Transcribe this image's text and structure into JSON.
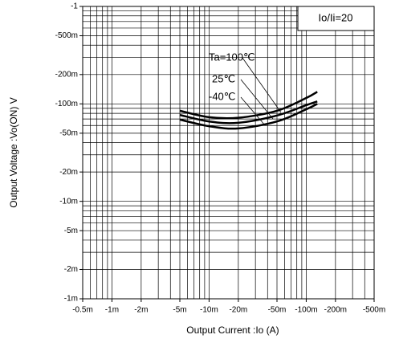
{
  "chart_data": {
    "type": "line",
    "xlabel": "Output Current :Io  (A)",
    "ylabel": "Output Voltage :Vo(ON) V",
    "condition": "Io/Ii=20",
    "xscale": "log",
    "yscale": "log",
    "xlim": [
      -0.0005,
      -0.5
    ],
    "ylim": [
      -0.001,
      -1
    ],
    "xticks": [
      {
        "value": -0.0005,
        "label": "-0.5m"
      },
      {
        "value": -0.001,
        "label": "-1m"
      },
      {
        "value": -0.002,
        "label": "-2m"
      },
      {
        "value": -0.005,
        "label": "-5m"
      },
      {
        "value": -0.01,
        "label": "-10m"
      },
      {
        "value": -0.02,
        "label": "-20m"
      },
      {
        "value": -0.05,
        "label": "-50m"
      },
      {
        "value": -0.1,
        "label": "-100m"
      },
      {
        "value": -0.2,
        "label": "-200m"
      },
      {
        "value": -0.5,
        "label": "-500m"
      }
    ],
    "yticks": [
      -1,
      {
        "value": -0.5,
        "label": "-500m"
      },
      {
        "value": -0.2,
        "label": "-200m"
      },
      {
        "value": -0.1,
        "label": "-100m"
      },
      {
        "value": -0.05,
        "label": "-50m"
      },
      {
        "value": -0.02,
        "label": "-20m"
      },
      {
        "value": -0.01,
        "label": "-10m"
      },
      {
        "value": -0.005,
        "label": "-5m"
      },
      {
        "value": -0.002,
        "label": "-2m"
      },
      {
        "value": -0.001,
        "label": "-1m"
      }
    ],
    "xgrid": [
      -0.0005,
      -0.0006,
      -0.0007,
      -0.0008,
      -0.0009,
      -0.001,
      -0.002,
      -0.003,
      -0.004,
      -0.005,
      -0.006,
      -0.007,
      -0.008,
      -0.009,
      -0.01,
      -0.02,
      -0.03,
      -0.04,
      -0.05,
      -0.06,
      -0.07,
      -0.08,
      -0.09,
      -0.1,
      -0.2,
      -0.3,
      -0.4,
      -0.5
    ],
    "ygrid": [
      -0.001,
      -0.002,
      -0.003,
      -0.004,
      -0.005,
      -0.006,
      -0.007,
      -0.008,
      -0.009,
      -0.01,
      -0.02,
      -0.03,
      -0.04,
      -0.05,
      -0.06,
      -0.07,
      -0.08,
      -0.09,
      -0.1,
      -0.2,
      -0.3,
      -0.4,
      -0.5,
      -0.6,
      -0.7,
      -0.8,
      -0.9,
      -1
    ],
    "x": [
      -0.005,
      -0.01,
      -0.02,
      -0.05,
      -0.1,
      -0.13
    ],
    "series": [
      {
        "name": "Ta=100℃",
        "color": "#000000",
        "values": [
          -0.085,
          -0.073,
          -0.072,
          -0.085,
          -0.115,
          -0.133
        ]
      },
      {
        "name": "25℃",
        "color": "#000000",
        "values": [
          -0.077,
          -0.066,
          -0.064,
          -0.076,
          -0.097,
          -0.106
        ]
      },
      {
        "name": "-40℃",
        "color": "#000000",
        "values": [
          -0.069,
          -0.059,
          -0.056,
          -0.066,
          -0.088,
          -0.1
        ]
      }
    ]
  }
}
